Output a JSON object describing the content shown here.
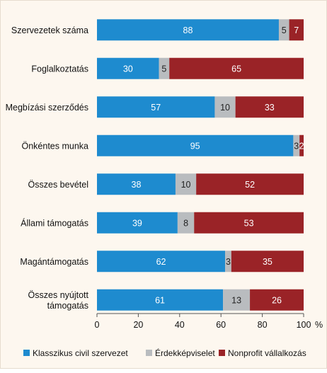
{
  "chart_data": {
    "type": "bar",
    "orientation": "horizontal",
    "stacked": true,
    "categories": [
      [
        "Szervezetek száma"
      ],
      [
        "Foglalkoztatás"
      ],
      [
        "Megbízási szerződés"
      ],
      [
        "Önkéntes munka"
      ],
      [
        "Összes bevétel"
      ],
      [
        "Állami támogatás"
      ],
      [
        "Magántámogatás"
      ],
      [
        "Összes nyújtott",
        "támogatás"
      ]
    ],
    "series": [
      {
        "name": "Klasszikus civil szervezet",
        "color": "#1e8bcf",
        "values": [
          88,
          30,
          57,
          95,
          38,
          39,
          62,
          61
        ]
      },
      {
        "name": "Érdekképviselet",
        "color": "#b9bcbf",
        "values": [
          5,
          5,
          10,
          3,
          10,
          8,
          3,
          13
        ]
      },
      {
        "name": "Nonprofit vállalkozás",
        "color": "#9a2327",
        "values": [
          7,
          65,
          33,
          2,
          52,
          53,
          35,
          26
        ]
      }
    ],
    "xticks": [
      "0",
      "20",
      "40",
      "60",
      "80",
      "100"
    ],
    "xunit": "%",
    "xlim": [
      0,
      100
    ],
    "legend_position": "bottom",
    "grid": false
  }
}
